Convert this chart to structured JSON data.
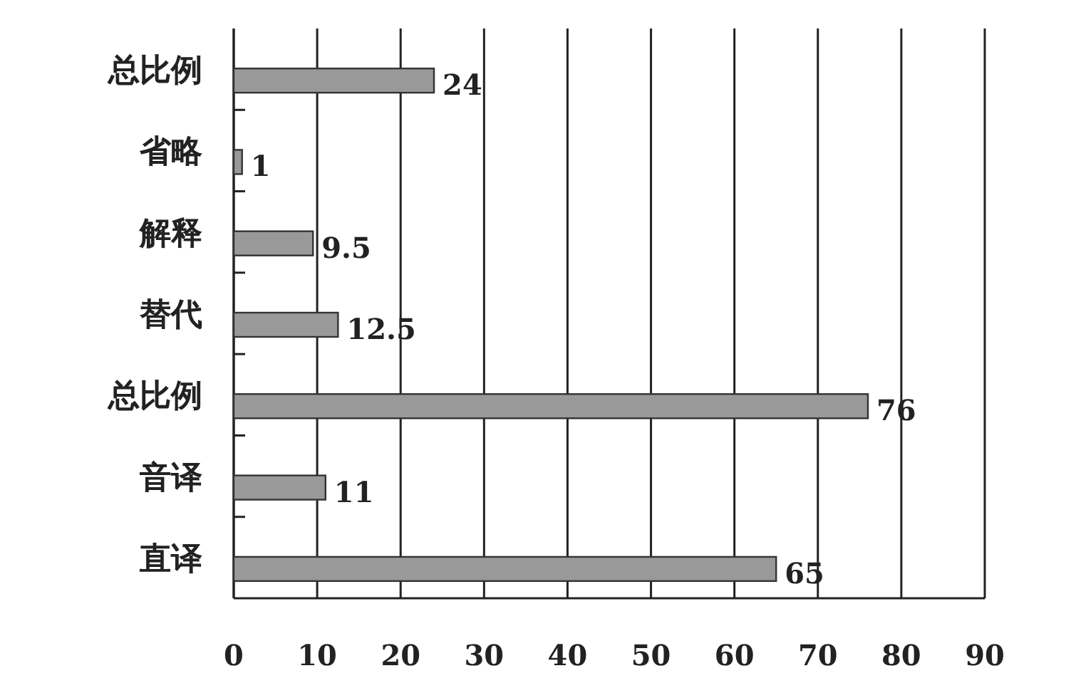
{
  "chart_data": {
    "type": "bar",
    "orientation": "horizontal",
    "categories": [
      "总比例",
      "省略",
      "解释",
      "替代",
      "总比例",
      "音译",
      "直译"
    ],
    "values": [
      24,
      1,
      9.5,
      12.5,
      76,
      11,
      65
    ],
    "color": "#999999",
    "xlim": [
      0,
      90
    ],
    "xticks": [
      0,
      10,
      20,
      30,
      40,
      50,
      60,
      70,
      80,
      90
    ],
    "grid": "x",
    "data_labels": true
  }
}
